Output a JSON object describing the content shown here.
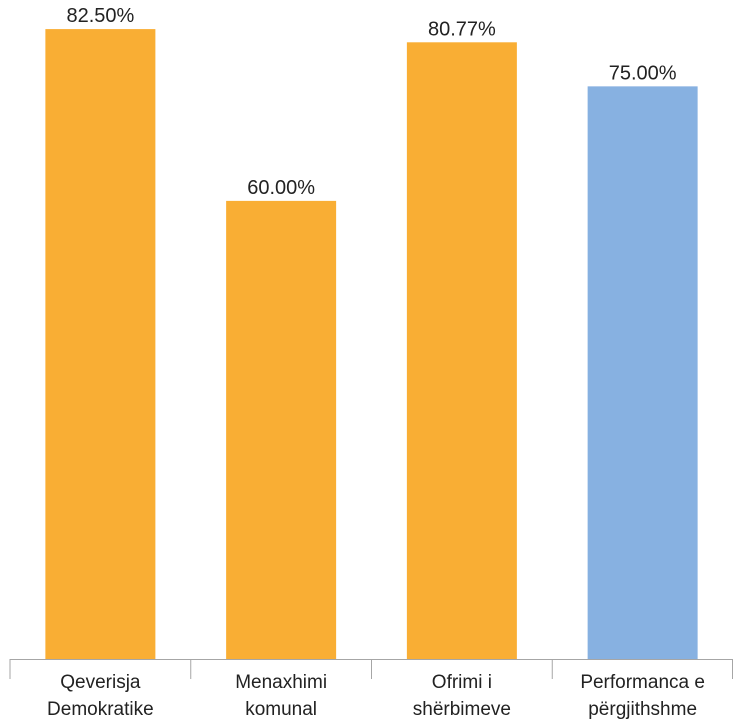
{
  "chart_data": {
    "type": "bar",
    "categories": [
      [
        "Qeverisja",
        "Demokratike"
      ],
      [
        "Menaxhimi",
        "komunal"
      ],
      [
        "Ofrimi i",
        "shërbimeve"
      ],
      [
        "Performanca e",
        "përgjithshme"
      ]
    ],
    "values": [
      82.5,
      60.0,
      80.77,
      75.0
    ],
    "data_labels": [
      "82.50%",
      "60.00%",
      "80.77%",
      "75.00%"
    ],
    "bar_colors": [
      "#F9AE34",
      "#F9AE34",
      "#F9AE34",
      "#87B1E1"
    ],
    "ylim": [
      0,
      85
    ],
    "grid": false,
    "legend": "none",
    "title": "",
    "xlabel": "",
    "ylabel": ""
  }
}
